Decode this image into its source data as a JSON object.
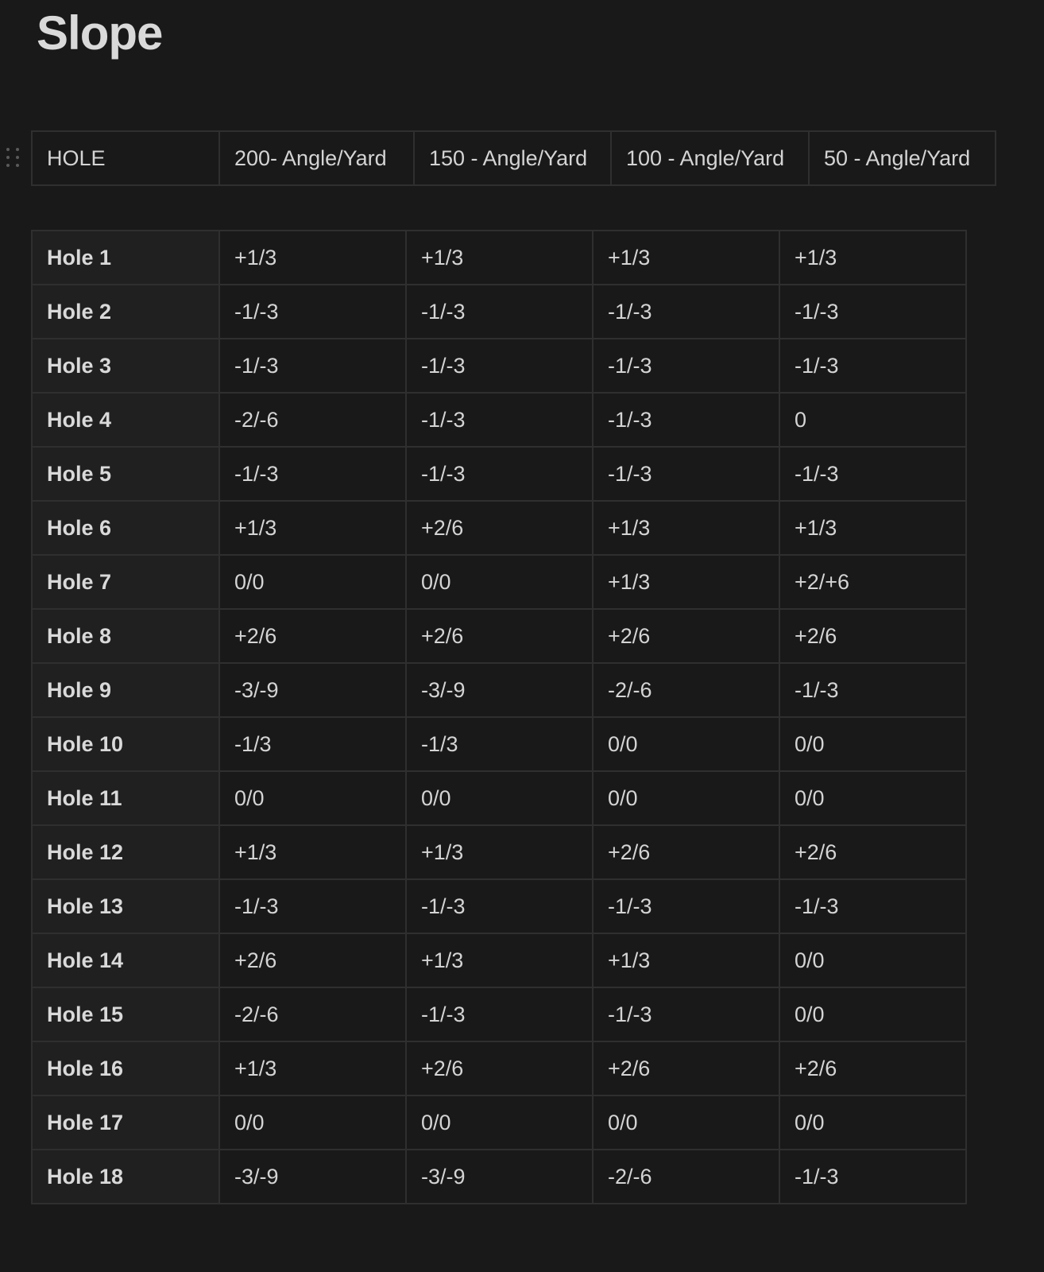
{
  "page": {
    "title": "Slope"
  },
  "header_table": {
    "columns": [
      "HOLE",
      "200- Angle/Yard",
      "150 - Angle/Yard",
      "100 - Angle/Yard",
      "50 - Angle/Yard"
    ]
  },
  "data_table": {
    "rows": [
      [
        "Hole 1",
        "+1/3",
        "+1/3",
        "+1/3",
        "+1/3"
      ],
      [
        "Hole 2",
        "-1/-3",
        "-1/-3",
        "-1/-3",
        "-1/-3"
      ],
      [
        "Hole 3",
        "-1/-3",
        "-1/-3",
        "-1/-3",
        "-1/-3"
      ],
      [
        "Hole 4",
        "-2/-6",
        "-1/-3",
        "-1/-3",
        "0"
      ],
      [
        "Hole 5",
        "-1/-3",
        "-1/-3",
        "-1/-3",
        "-1/-3"
      ],
      [
        "Hole 6",
        "+1/3",
        "+2/6",
        "+1/3",
        "+1/3"
      ],
      [
        "Hole 7",
        "0/0",
        "0/0",
        "+1/3",
        "+2/+6"
      ],
      [
        "Hole 8",
        "+2/6",
        "+2/6",
        "+2/6",
        "+2/6"
      ],
      [
        "Hole 9",
        "-3/-9",
        "-3/-9",
        "-2/-6",
        "-1/-3"
      ],
      [
        "Hole 10",
        "-1/3",
        "-1/3",
        "0/0",
        "0/0"
      ],
      [
        "Hole 11",
        "0/0",
        "0/0",
        "0/0",
        "0/0"
      ],
      [
        "Hole 12",
        "+1/3",
        "+1/3",
        "+2/6",
        "+2/6"
      ],
      [
        "Hole 13",
        "-1/-3",
        "-1/-3",
        "-1/-3",
        "-1/-3"
      ],
      [
        "Hole 14",
        "+2/6",
        "+1/3",
        "+1/3",
        "0/0"
      ],
      [
        "Hole 15",
        "-2/-6",
        "-1/-3",
        "-1/-3",
        "0/0"
      ],
      [
        "Hole 16",
        "+1/3",
        "+2/6",
        "+2/6",
        "+2/6"
      ],
      [
        "Hole 17",
        "0/0",
        "0/0",
        "0/0",
        "0/0"
      ],
      [
        "Hole 18",
        "-3/-9",
        "-3/-9",
        "-2/-6",
        "-1/-3"
      ]
    ]
  },
  "icons": {
    "drag_handle": "drag-handle-icon"
  }
}
